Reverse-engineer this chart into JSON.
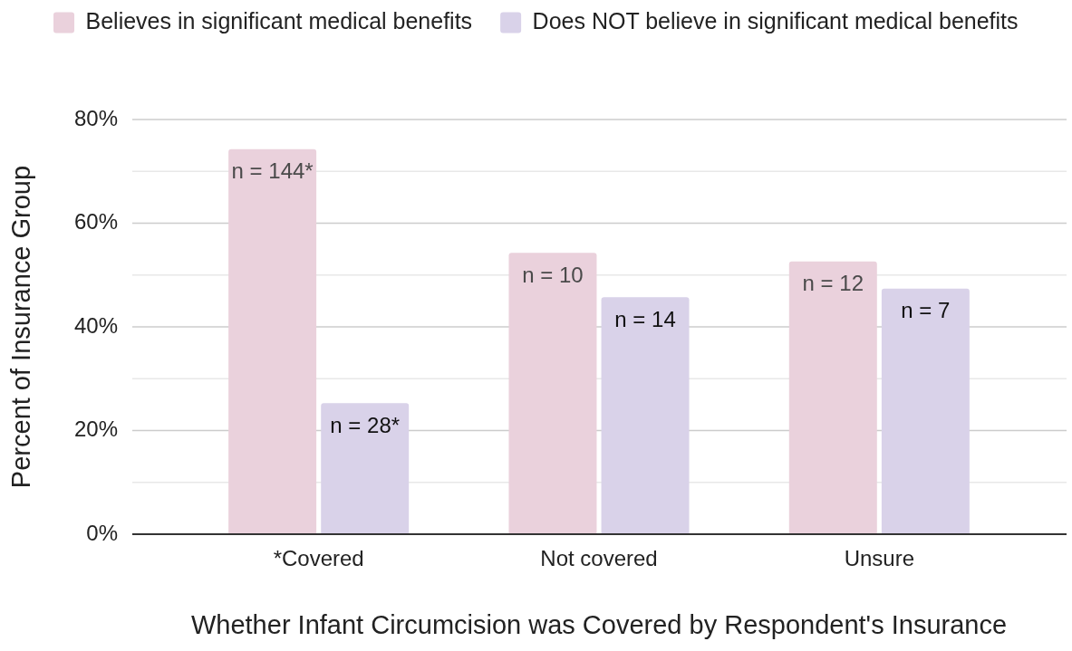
{
  "chart_data": {
    "type": "bar",
    "categories": [
      "*Covered",
      "Not covered",
      "Unsure"
    ],
    "series": [
      {
        "name": "Believes in significant medical benefits",
        "color": "#ead1dc",
        "values": [
          74.3,
          54.3,
          52.6
        ]
      },
      {
        "name": "Does NOT believe in significant medical benefits",
        "color": "#d9d2e9",
        "values": [
          25.3,
          45.7,
          47.4
        ]
      }
    ],
    "annotations": [
      {
        "text": "n = 144*",
        "x": "*Covered",
        "y": 74.3
      },
      {
        "text": "n = 10",
        "x": "Not covered",
        "y": 54.3
      },
      {
        "text": "n = 12",
        "x": "Unsure",
        "y": 52.6
      },
      {
        "text": "n = 28*",
        "x": "*Covered",
        "y": 25.3
      },
      {
        "text": "n = 14",
        "x": "Not covered",
        "y": 45.7
      },
      {
        "text": "n = 7",
        "x": "Unsure",
        "y": 47.4
      }
    ],
    "xlabel": "Whether Infant Circumcision was Covered by Respondent's Insurance",
    "ylabel": "Percent of Insurance Group",
    "ylim": [
      0,
      80
    ],
    "yticks": [
      {
        "value": 0,
        "label": "0%"
      },
      {
        "value": 10,
        "label": null
      },
      {
        "value": 20,
        "label": "20%"
      },
      {
        "value": 30,
        "label": null
      },
      {
        "value": 40,
        "label": "40%"
      },
      {
        "value": 50,
        "label": null
      },
      {
        "value": 60,
        "label": "60%"
      },
      {
        "value": 70,
        "label": null
      },
      {
        "value": 80,
        "label": "80%"
      }
    ],
    "grid": "y",
    "legend": "top"
  }
}
